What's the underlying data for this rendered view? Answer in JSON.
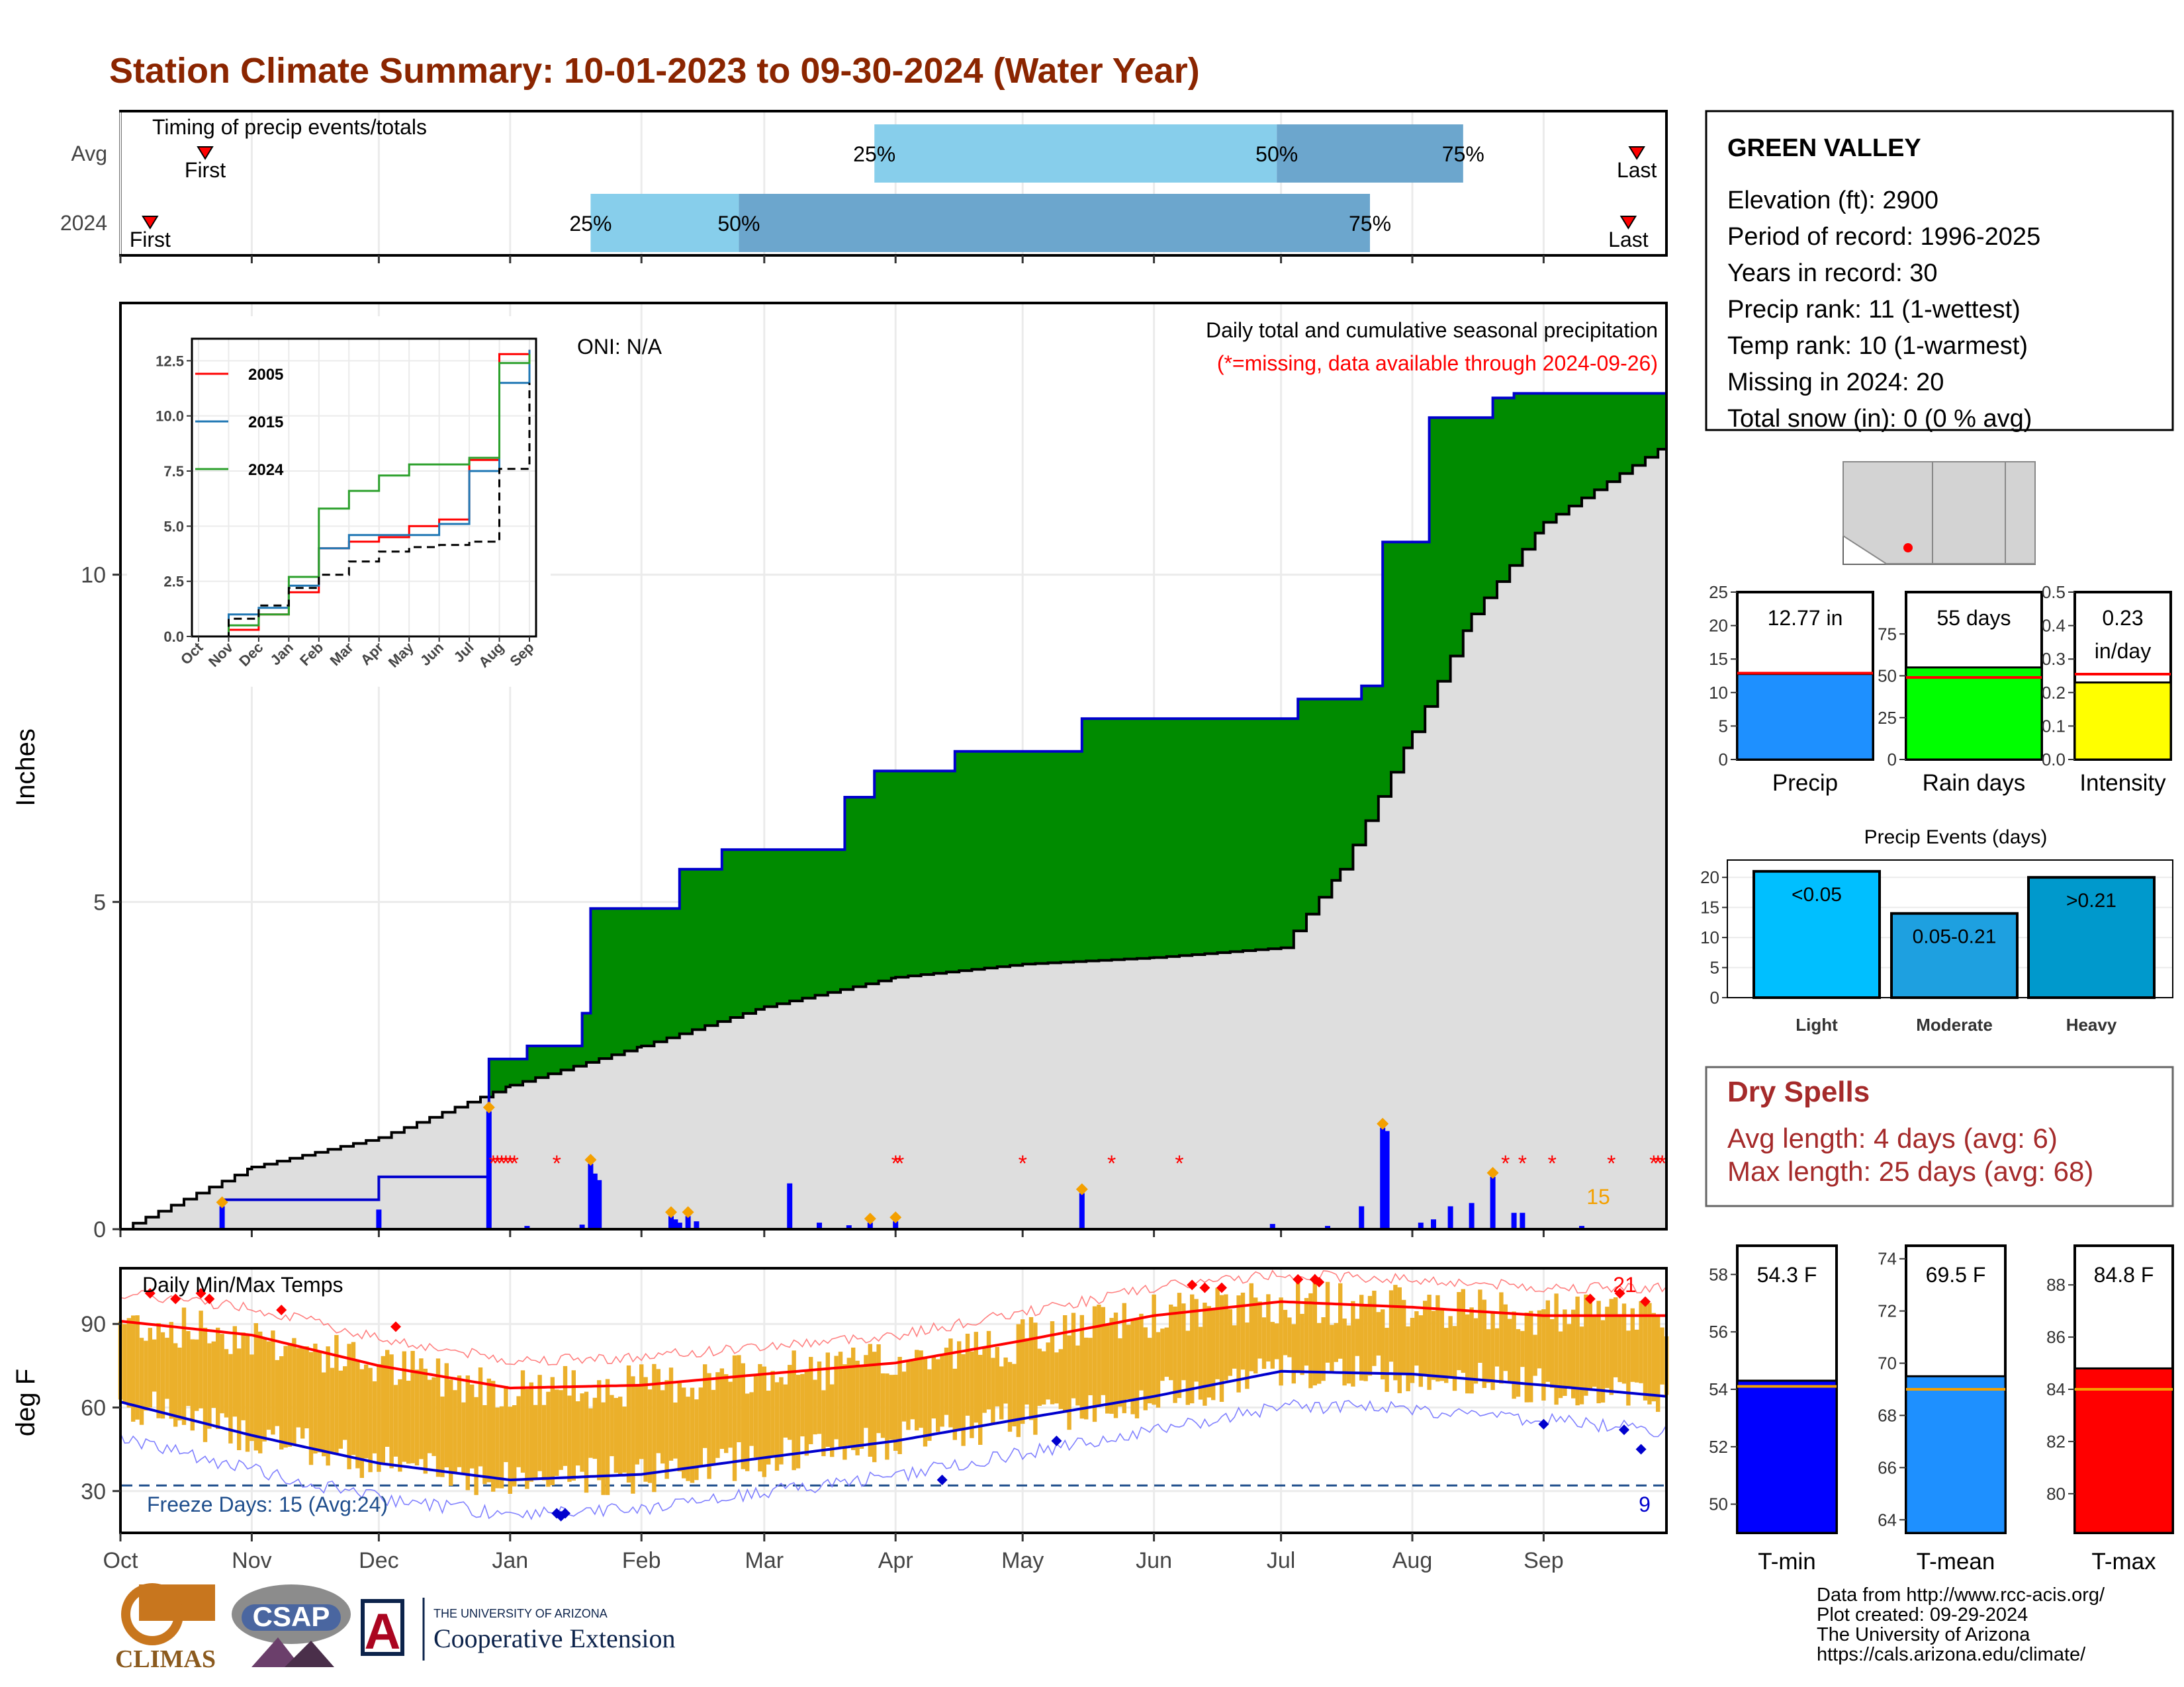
{
  "title": "Station Climate Summary: 10-01-2023 to 09-30-2024 (Water Year)",
  "colors": {
    "title": "#8B2500",
    "green": "#008B00",
    "brown": "#8B5A00",
    "gray_fill": "#DEDEDE",
    "blue_line": "#0000CD",
    "orange": "#F4A000",
    "red": "#FF0000",
    "light_blue": "#87CEEB",
    "mid_blue": "#6CA6CD",
    "dry_red": "#A52A2A"
  },
  "timing": {
    "label": "Timing of precip events/totals",
    "rows": [
      "Avg",
      "2024"
    ],
    "first_label": "First",
    "last_label": "Last",
    "avg": {
      "first": "2023-10-21",
      "last": "2024-09-23",
      "p25": "2024-03-27",
      "p50": "2024-06-30",
      "p75": "2024-08-13"
    },
    "wy": {
      "first": "2023-10-08",
      "last": "2024-09-21",
      "p25": "2024-01-20",
      "p50": "2024-02-24",
      "p75": "2024-07-22"
    },
    "pct_labels": [
      "25%",
      "50%",
      "75%"
    ]
  },
  "precip_panel": {
    "ylabel": "Inches",
    "oni": "ONI: N/A",
    "desc": "Daily total and cumulative seasonal precipitation",
    "missing_note": "(*=missing, data available through 2024-09-26)",
    "y_ticks": [
      "0",
      "5",
      "10"
    ],
    "orange_count": "15"
  },
  "inset": {
    "legend": [
      "2005",
      "2015",
      "2024"
    ],
    "y_ticks": [
      "0.0",
      "2.5",
      "5.0",
      "7.5",
      "10.0",
      "12.5"
    ],
    "x_ticks": [
      "Oct",
      "Nov",
      "Dec",
      "Jan",
      "Feb",
      "Mar",
      "Apr",
      "May",
      "Jun",
      "Jul",
      "Aug",
      "Sep"
    ]
  },
  "temp_panel": {
    "ylabel": "deg F",
    "title": "Daily Min/Max Temps",
    "freeze_label": "Freeze Days: 15 (Avg:24)",
    "hot_count": "21",
    "cold_count": "9",
    "y_ticks": [
      "30",
      "60",
      "90"
    ]
  },
  "x_months": [
    "Oct",
    "Nov",
    "Dec",
    "Jan",
    "Feb",
    "Mar",
    "Apr",
    "May",
    "Jun",
    "Jul",
    "Aug",
    "Sep"
  ],
  "station": {
    "name": "GREEN VALLEY",
    "lines": [
      "Elevation (ft): 2900",
      "Period of record: 1996-2025",
      "Years in record: 30",
      "Precip rank: 11 (1-wettest)",
      "Temp rank: 10 (1-warmest)",
      "Missing in 2024: 20",
      "Total snow (in): 0 (0 % avg)"
    ]
  },
  "mini_bars": [
    {
      "label": "Precip",
      "value_text": "12.77 in",
      "value": 12.77,
      "avg": 12.9,
      "max": 25,
      "ticks": [
        "0",
        "5",
        "10",
        "15",
        "20",
        "25"
      ],
      "color": "#1E90FF"
    },
    {
      "label": "Rain days",
      "value_text": "55 days",
      "value": 55,
      "avg": 49,
      "max": 100,
      "ticks": [
        "0",
        "25",
        "50",
        "75"
      ],
      "color": "#00FF00"
    },
    {
      "label": "Intensity",
      "value_text": "0.23 in/day",
      "value": 0.23,
      "avg": 0.255,
      "max": 0.5,
      "ticks": [
        "0.0",
        "0.1",
        "0.2",
        "0.3",
        "0.4",
        "0.5"
      ],
      "color": "#FFFF00"
    }
  ],
  "precip_events": {
    "title": "Precip Events (days)",
    "y_ticks": [
      "0",
      "5",
      "10",
      "15",
      "20"
    ],
    "bars": [
      {
        "label": "Light",
        "range": "<0.05",
        "value": 21,
        "color": "#00BFFF"
      },
      {
        "label": "Moderate",
        "range": "0.05-0.21",
        "value": 14,
        "color": "#1EA0E0"
      },
      {
        "label": "Heavy",
        "range": ">0.21",
        "value": 20,
        "color": "#0099CC"
      }
    ]
  },
  "dry_spells": {
    "title": "Dry Spells",
    "avg_length": "Avg length: 4 days (avg: 6)",
    "max_length": "Max length: 25 days (avg: 68)"
  },
  "temp_bars": [
    {
      "label": "T-min",
      "value_text": "54.3 F",
      "value": 54.3,
      "avg": 54.1,
      "min": 49,
      "max": 59,
      "ticks": [
        "50",
        "52",
        "54",
        "56",
        "58"
      ],
      "color": "#0000FF"
    },
    {
      "label": "T-mean",
      "value_text": "69.5 F",
      "value": 69.5,
      "avg": 69.0,
      "min": 63.5,
      "max": 74.5,
      "ticks": [
        "64",
        "66",
        "68",
        "70",
        "72",
        "74"
      ],
      "color": "#1E90FF"
    },
    {
      "label": "T-max",
      "value_text": "84.8 F",
      "value": 84.8,
      "avg": 84.0,
      "min": 78.5,
      "max": 89.5,
      "ticks": [
        "80",
        "82",
        "84",
        "86",
        "88"
      ],
      "color": "#FF0000"
    }
  ],
  "credits": [
    "Data from http://www.rcc-acis.org/",
    "Plot created: 09-29-2024",
    "The University of Arizona",
    "https://cals.arizona.edu/climate/"
  ],
  "logos": {
    "climas": "CLIMAS",
    "csap": "CSAP",
    "ua_small": "THE UNIVERSITY OF ARIZONA",
    "ua_big": "Cooperative Extension"
  },
  "chart_data": [
    {
      "type": "area",
      "title": "Daily total and cumulative seasonal precipitation",
      "ylabel": "Inches",
      "ylim": [
        0,
        14
      ],
      "series": [
        {
          "name": "2024",
          "x": [
            "2023-10-01",
            "2023-10-25",
            "2023-12-01",
            "2023-12-27",
            "2024-01-05",
            "2024-01-18",
            "2024-01-20",
            "2024-02-10",
            "2024-02-20",
            "2024-03-01",
            "2024-03-20",
            "2024-03-27",
            "2024-04-15",
            "2024-05-15",
            "2024-06-28",
            "2024-07-05",
            "2024-07-20",
            "2024-07-25",
            "2024-08-05",
            "2024-08-20",
            "2024-08-25",
            "2024-09-26"
          ],
          "values": [
            0,
            0.45,
            0.8,
            2.6,
            2.8,
            3.3,
            4.9,
            5.5,
            5.8,
            5.8,
            6.6,
            7.0,
            7.3,
            7.8,
            7.8,
            8.1,
            8.3,
            10.5,
            12.4,
            12.7,
            12.77,
            12.77
          ]
        },
        {
          "name": "Avg",
          "x": [
            "2023-10-01",
            "2023-11-01",
            "2023-12-01",
            "2024-01-01",
            "2024-02-01",
            "2024-03-01",
            "2024-04-01",
            "2024-05-01",
            "2024-06-01",
            "2024-07-01",
            "2024-07-15",
            "2024-08-01",
            "2024-08-15",
            "2024-09-01",
            "2024-09-30"
          ],
          "values": [
            0,
            0.95,
            1.4,
            2.2,
            2.8,
            3.4,
            3.85,
            4.05,
            4.15,
            4.3,
            5.5,
            7.6,
            9.4,
            10.8,
            12.0
          ]
        }
      ]
    },
    {
      "type": "line",
      "title": "",
      "ylim": [
        0,
        13
      ],
      "series": [
        {
          "name": "2005",
          "values": [
            0,
            0.3,
            1.0,
            2.0,
            4.0,
            4.3,
            4.5,
            5.0,
            5.3,
            8.0,
            12.8,
            13.0
          ]
        },
        {
          "name": "2015",
          "values": [
            0,
            1.0,
            1.3,
            2.3,
            4.0,
            4.6,
            4.6,
            4.6,
            5.1,
            7.5,
            11.5,
            13.0
          ]
        },
        {
          "name": "2024",
          "values": [
            0,
            0.5,
            1.0,
            2.7,
            5.8,
            6.6,
            7.3,
            7.8,
            7.8,
            8.1,
            12.4,
            12.8
          ]
        },
        {
          "name": "Avg",
          "values": [
            0,
            0.8,
            1.4,
            2.2,
            2.8,
            3.4,
            3.85,
            4.05,
            4.15,
            4.3,
            7.6,
            11.5
          ]
        }
      ]
    },
    {
      "type": "line",
      "title": "Daily Min/Max Temps",
      "ylabel": "deg F",
      "ylim": [
        15,
        110
      ],
      "x": [
        "Oct",
        "Nov",
        "Dec",
        "Jan",
        "Feb",
        "Mar",
        "Apr",
        "May",
        "Jun",
        "Jul",
        "Aug",
        "Sep",
        "Sep30"
      ],
      "series": [
        {
          "name": "Avg max",
          "values": [
            91,
            86,
            75,
            67,
            68,
            72,
            76,
            84,
            93,
            98,
            96,
            93,
            93
          ]
        },
        {
          "name": "Avg min",
          "values": [
            62,
            50,
            40,
            34,
            36,
            42,
            48,
            56,
            64,
            73,
            72,
            68,
            64
          ]
        }
      ]
    },
    {
      "type": "bar",
      "title": "Precip Events (days)",
      "categories": [
        "Light",
        "Moderate",
        "Heavy"
      ],
      "values": [
        21,
        14,
        20
      ]
    }
  ]
}
